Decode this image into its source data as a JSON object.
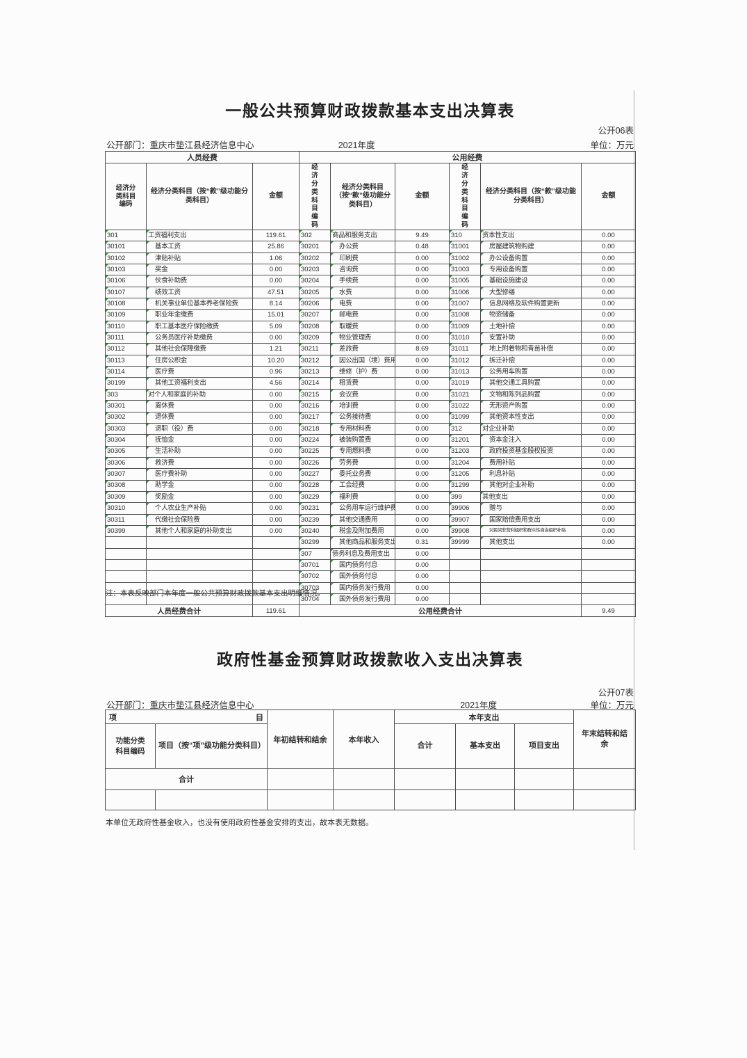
{
  "table1": {
    "title": "一般公共预算财政拨款基本支出决算表",
    "sheet_label": "公开06表",
    "department": "公开部门：重庆市垫江县经济信息中心",
    "year": "2021年度",
    "unit": "单位：万元",
    "group1_header": "人员经费",
    "group2_header": "公用经费",
    "col_code_header": "经济分类科目编码",
    "col_name_header": "经济分类科目（按“款”级功能分类科目）",
    "col_amount_header": "金额",
    "rows": [
      [
        "301",
        "工资福利支出",
        "119.61",
        "302",
        "商品和服务支出",
        "9.49",
        "310",
        "资本性支出",
        "0.00"
      ],
      [
        "30101",
        "基本工资",
        "25.86",
        "30201",
        "办公费",
        "0.48",
        "31001",
        "房屋建筑物购建",
        "0.00"
      ],
      [
        "30102",
        "津贴补贴",
        "1.06",
        "30202",
        "印刷费",
        "0.00",
        "31002",
        "办公设备购置",
        "0.00"
      ],
      [
        "30103",
        "奖金",
        "0.00",
        "30203",
        "咨询费",
        "0.00",
        "31003",
        "专用设备购置",
        "0.00"
      ],
      [
        "30106",
        "伙食补助费",
        "0.00",
        "30204",
        "手续费",
        "0.00",
        "31005",
        "基础设施建设",
        "0.00"
      ],
      [
        "30107",
        "绩效工资",
        "47.51",
        "30205",
        "水费",
        "0.00",
        "31006",
        "大型修缮",
        "0.00"
      ],
      [
        "30108",
        "机关事业单位基本养老保险费",
        "8.14",
        "30206",
        "电费",
        "0.00",
        "31007",
        "信息网络及软件购置更新",
        "0.00"
      ],
      [
        "30109",
        "职业年金缴费",
        "15.01",
        "30207",
        "邮电费",
        "0.00",
        "31008",
        "物资储备",
        "0.00"
      ],
      [
        "30110",
        "职工基本医疗保险缴费",
        "5.09",
        "30208",
        "取暖费",
        "0.00",
        "31009",
        "土地补偿",
        "0.00"
      ],
      [
        "30111",
        "公务员医疗补助缴费",
        "0.00",
        "30209",
        "物业管理费",
        "0.00",
        "31010",
        "安置补助",
        "0.00"
      ],
      [
        "30112",
        "其他社会保障缴费",
        "1.21",
        "30211",
        "差旅费",
        "8.69",
        "31011",
        "地上附着物和青苗补偿",
        "0.00"
      ],
      [
        "30113",
        "住房公积金",
        "10.20",
        "30212",
        "因公出国（境）费用",
        "0.00",
        "31012",
        "拆迁补偿",
        "0.00"
      ],
      [
        "30114",
        "医疗费",
        "0.96",
        "30213",
        "维修（护）费",
        "0.00",
        "31013",
        "公务用车购置",
        "0.00"
      ],
      [
        "30199",
        "其他工资福利支出",
        "4.56",
        "30214",
        "租赁费",
        "0.00",
        "31019",
        "其他交通工具购置",
        "0.00"
      ],
      [
        "303",
        "对个人和家庭的补助",
        "0.00",
        "30215",
        "会议费",
        "0.00",
        "31021",
        "文物和陈列品购置",
        "0.00"
      ],
      [
        "30301",
        "离休费",
        "0.00",
        "30216",
        "培训费",
        "0.00",
        "31022",
        "无形资产购置",
        "0.00"
      ],
      [
        "30302",
        "退休费",
        "0.00",
        "30217",
        "公务接待费",
        "0.00",
        "31099",
        "其他资本性支出",
        "0.00"
      ],
      [
        "30303",
        "退职（役）费",
        "0.00",
        "30218",
        "专用材料费",
        "0.00",
        "312",
        "对企业补助",
        "0.00"
      ],
      [
        "30304",
        "抚恤金",
        "0.00",
        "30224",
        "被装购置费",
        "0.00",
        "31201",
        "资本金注入",
        "0.00"
      ],
      [
        "30305",
        "生活补助",
        "0.00",
        "30225",
        "专用燃料费",
        "0.00",
        "31203",
        "政府投资基金股权投资",
        "0.00"
      ],
      [
        "30306",
        "救济费",
        "0.00",
        "30226",
        "劳务费",
        "0.00",
        "31204",
        "费用补贴",
        "0.00"
      ],
      [
        "30307",
        "医疗费补助",
        "0.00",
        "30227",
        "委托业务费",
        "0.00",
        "31205",
        "利息补贴",
        "0.00"
      ],
      [
        "30308",
        "助学金",
        "0.00",
        "30228",
        "工会经费",
        "0.00",
        "31299",
        "其他对企业补助",
        "0.00"
      ],
      [
        "30309",
        "奖励金",
        "0.00",
        "30229",
        "福利费",
        "0.00",
        "399",
        "其他支出",
        "0.00"
      ],
      [
        "30310",
        "个人农业生产补贴",
        "0.00",
        "30231",
        "公务用车运行维护费",
        "0.00",
        "39906",
        "赠与",
        "0.00"
      ],
      [
        "30311",
        "代缴社会保险费",
        "0.00",
        "30239",
        "其他交通费用",
        "0.00",
        "39907",
        "国家赔偿费用支出",
        "0.00"
      ],
      [
        "30399",
        "其他个人和家庭的补助支出",
        "0.00",
        "30240",
        "税金及附加费用",
        "0.00",
        "39908",
        "对民间非营利组织和群众性自治组织补贴",
        "0.00"
      ],
      [
        "",
        "",
        "",
        "30299",
        "其他商品和服务支出",
        "0.31",
        "39999",
        "其他支出",
        "0.00"
      ],
      [
        "",
        "",
        "",
        "307",
        "债务利息及费用支出",
        "0.00",
        "",
        "",
        ""
      ],
      [
        "",
        "",
        "",
        "30701",
        "国内债务付息",
        "0.00",
        "",
        "",
        ""
      ],
      [
        "",
        "",
        "",
        "30702",
        "国外债务付息",
        "0.00",
        "",
        "",
        ""
      ],
      [
        "",
        "",
        "",
        "30703",
        "国内债务发行费用",
        "0.00",
        "",
        "",
        ""
      ],
      [
        "",
        "",
        "",
        "30704",
        "国外债务发行费用",
        "0.00",
        "",
        "",
        ""
      ]
    ],
    "total_row": {
      "label1": "人员经费合计",
      "amount1": "119.61",
      "label2": "公用经费合计",
      "amount2": "9.49"
    },
    "note": "注：本表反映部门本年度一般公共预算财政拨款基本支出明细情况。"
  },
  "table2": {
    "title": "政府性基金预算财政拨款收入支出决算表",
    "sheet_label": "公开07表",
    "department": "公开部门：重庆市垫江县经济信息中心",
    "year": "2021年度",
    "unit": "单位：万元",
    "headers": {
      "item_left": "项",
      "item_right": "目",
      "func_code": "功能分类科目编码",
      "item_detail": "项目（按“项”级功能分类科目）",
      "begin_balance": "年初结转和结余",
      "year_income": "本年收入",
      "year_expend": "本年支出",
      "total": "合计",
      "basic": "基本支出",
      "project": "项目支出",
      "end_balance": "年末结转和结余"
    },
    "total_label": "合计",
    "note": "本单位无政府性基金收入，也没有使用政府性基金安排的支出，故本表无数据。"
  }
}
